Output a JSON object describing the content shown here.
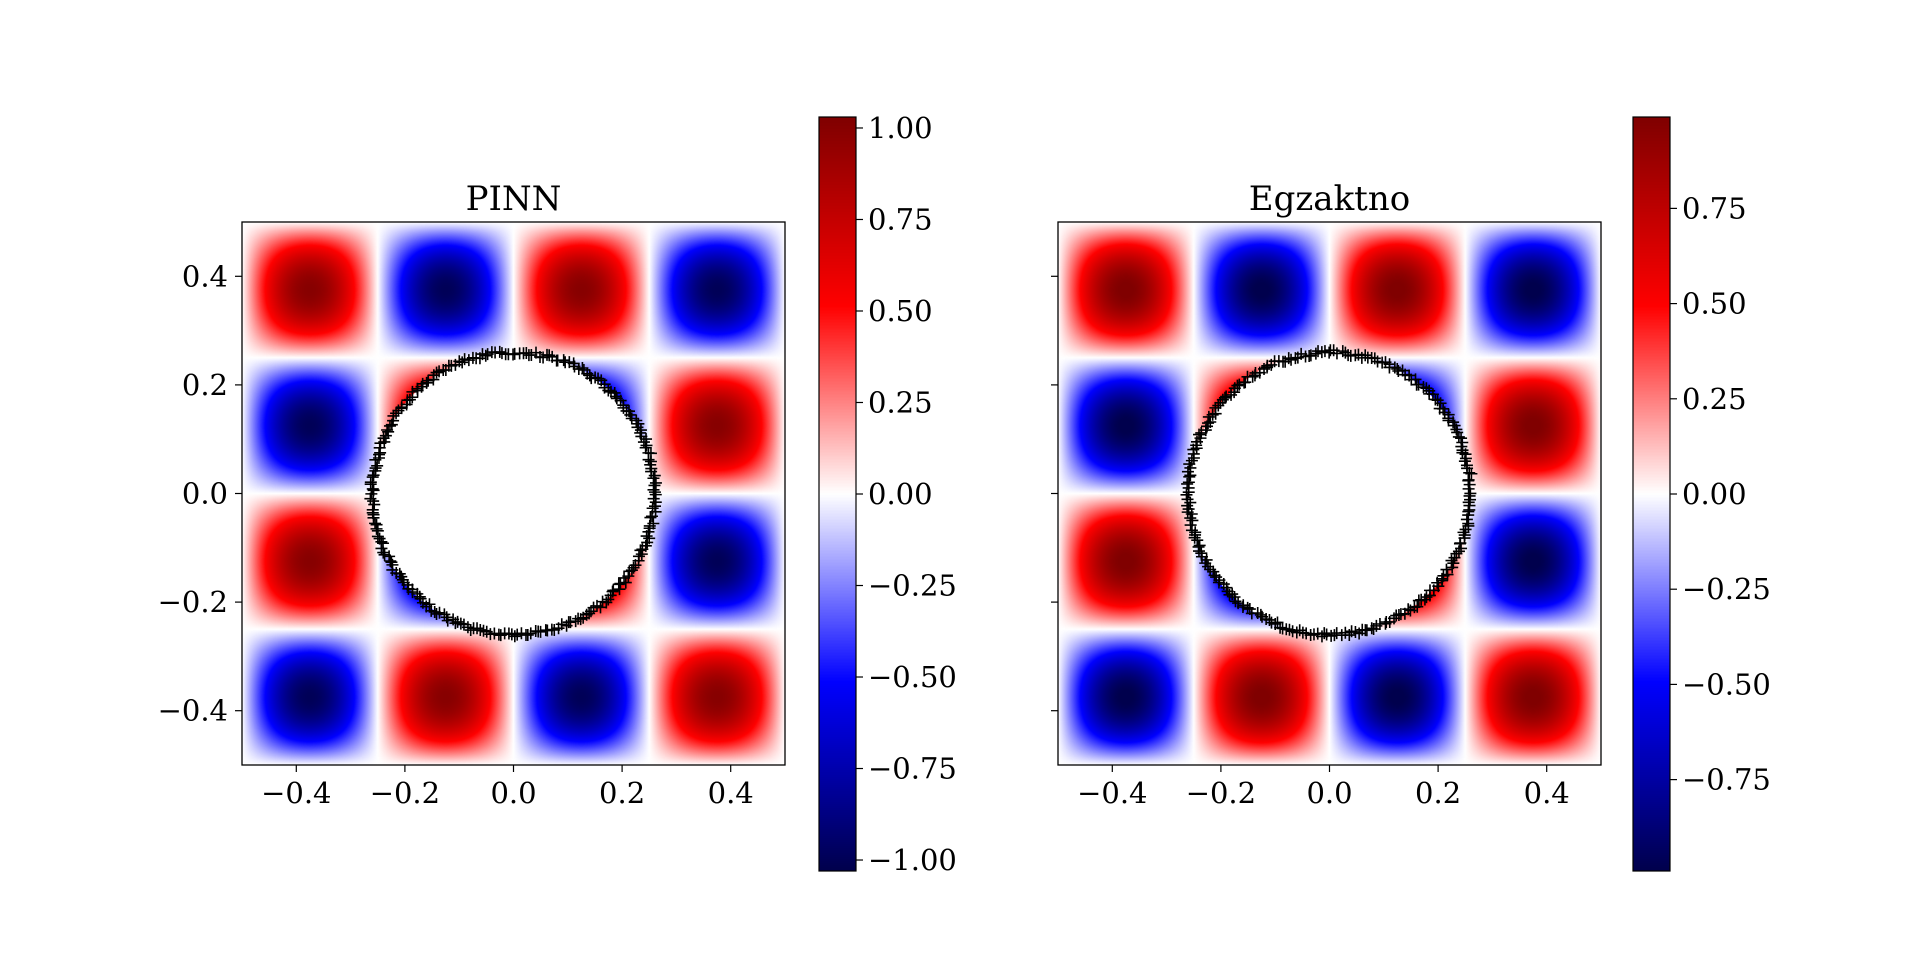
{
  "figure": {
    "panels": [
      {
        "title": "PINN",
        "show_y_tick_labels": true,
        "colorbar_ticks": [
          "1.00",
          "0.75",
          "0.50",
          "0.25",
          "0.00",
          "−0.25",
          "−0.50",
          "−0.75",
          "−1.00"
        ],
        "colorbar_tick_values": [
          1.0,
          0.75,
          0.5,
          0.25,
          0.0,
          -0.25,
          -0.5,
          -0.75,
          -1.0
        ],
        "colorbar_range": [
          -1.03,
          1.03
        ]
      },
      {
        "title": "Egzaktno",
        "show_y_tick_labels": false,
        "colorbar_ticks": [
          "0.75",
          "0.50",
          "0.25",
          "0.00",
          "−0.25",
          "−0.50",
          "−0.75"
        ],
        "colorbar_tick_values": [
          0.75,
          0.5,
          0.25,
          0.0,
          -0.25,
          -0.5,
          -0.75
        ],
        "colorbar_range": [
          -0.99,
          0.99
        ]
      }
    ]
  },
  "chart_data": [
    {
      "type": "heatmap",
      "title": "PINN",
      "xlabel": "",
      "ylabel": "",
      "xlim": [
        -0.5,
        0.5
      ],
      "ylim": [
        -0.5,
        0.5
      ],
      "x_ticks": [
        -0.4,
        -0.2,
        0.0,
        0.2,
        0.4
      ],
      "x_tick_labels": [
        "−0.4",
        "−0.2",
        "0.0",
        "0.2",
        "0.4"
      ],
      "y_ticks": [
        0.4,
        0.2,
        0.0,
        -0.2,
        -0.4
      ],
      "y_tick_labels": [
        "0.4",
        "0.2",
        "0.0",
        "−0.2",
        "−0.4"
      ],
      "field": "-sin(4*pi*x)*sin(4*pi*y)",
      "hole_center": [
        0.0,
        0.0
      ],
      "hole_radius": 0.26,
      "colormap": "seismic",
      "vmin": -1.03,
      "vmax": 1.03,
      "boundary_points": "black '+' markers along hole boundary",
      "grid": false
    },
    {
      "type": "heatmap",
      "title": "Egzaktno",
      "xlabel": "",
      "ylabel": "",
      "xlim": [
        -0.5,
        0.5
      ],
      "ylim": [
        -0.5,
        0.5
      ],
      "x_ticks": [
        -0.4,
        -0.2,
        0.0,
        0.2,
        0.4
      ],
      "x_tick_labels": [
        "−0.4",
        "−0.2",
        "0.0",
        "0.2",
        "0.4"
      ],
      "y_ticks": [
        0.4,
        0.2,
        0.0,
        -0.2,
        -0.4
      ],
      "field": "-sin(4*pi*x)*sin(4*pi*y)",
      "hole_center": [
        0.0,
        0.0
      ],
      "hole_radius": 0.26,
      "colormap": "seismic",
      "vmin": -0.99,
      "vmax": 0.99,
      "boundary_points": "black '+' markers along hole boundary",
      "grid": false
    }
  ]
}
